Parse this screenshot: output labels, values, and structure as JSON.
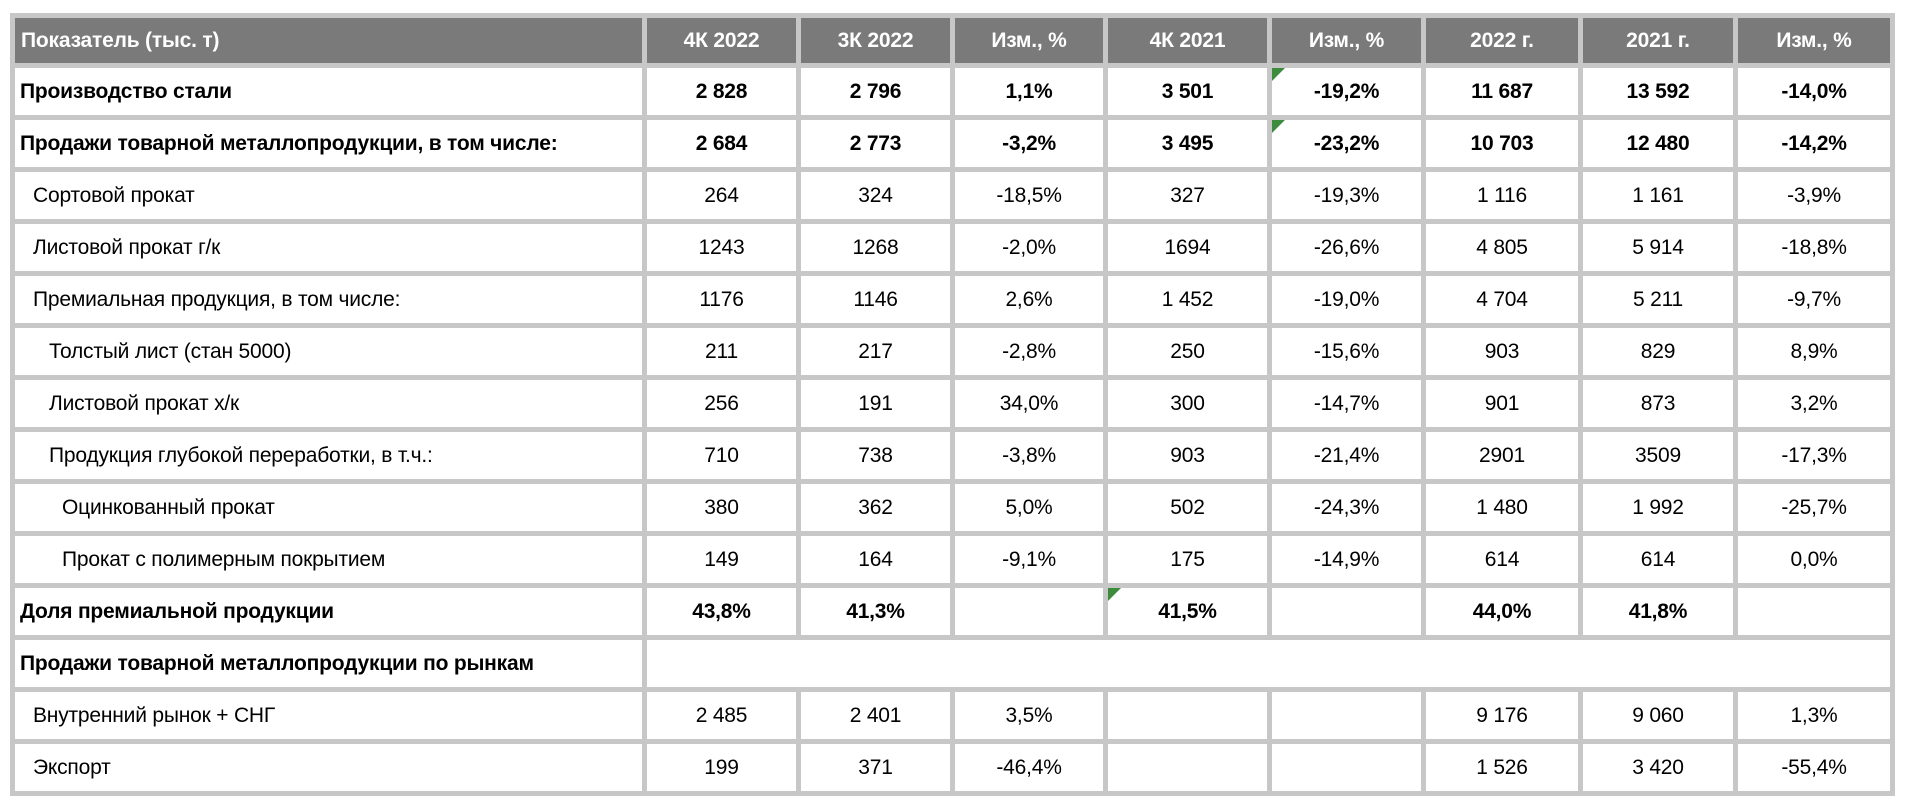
{
  "colors": {
    "header_background": "#7a7a7a",
    "header_text": "#ffffff",
    "grid_border": "#c7c7c7",
    "body_text": "#000000",
    "comment_flag_green": "#3d8b3d"
  },
  "chart_data": {
    "type": "table",
    "title": "Показатель (тыс. т)",
    "columns": [
      "Показатель (тыс. т)",
      "4К 2022",
      "3К 2022",
      "Изм., %",
      "4К 2021",
      "Изм., %",
      "2022 г.",
      "2021 г.",
      "Изм., %"
    ],
    "rows": [
      {
        "label": "Производство стали",
        "bold": true,
        "indent": 0,
        "merged": false,
        "flag_on": 4,
        "values": [
          "2 828",
          "2 796",
          "1,1%",
          "3 501",
          "-19,2%",
          "11 687",
          "13 592",
          "-14,0%"
        ]
      },
      {
        "label": "Продажи товарной металлопродукции, в том числе:",
        "bold": true,
        "indent": 0,
        "merged": false,
        "flag_on": 4,
        "values": [
          "2 684",
          "2 773",
          "-3,2%",
          "3 495",
          "-23,2%",
          "10 703",
          "12 480",
          "-14,2%"
        ]
      },
      {
        "label": "Сортовой прокат",
        "bold": false,
        "indent": 1,
        "merged": false,
        "flag_on": -1,
        "values": [
          "264",
          "324",
          "-18,5%",
          "327",
          "-19,3%",
          "1 116",
          "1 161",
          "-3,9%"
        ]
      },
      {
        "label": "Листовой прокат г/к",
        "bold": false,
        "indent": 1,
        "merged": false,
        "flag_on": -1,
        "values": [
          "1243",
          "1268",
          "-2,0%",
          "1694",
          "-26,6%",
          "4 805",
          "5 914",
          "-18,8%"
        ]
      },
      {
        "label": "Премиальная продукция, в том числе:",
        "bold": false,
        "indent": 1,
        "merged": false,
        "flag_on": -1,
        "values": [
          "1176",
          "1146",
          "2,6%",
          "1 452",
          "-19,0%",
          "4 704",
          "5 211",
          "-9,7%"
        ]
      },
      {
        "label": "Толстый лист (стан 5000)",
        "bold": false,
        "indent": 2,
        "merged": false,
        "flag_on": -1,
        "values": [
          "211",
          "217",
          "-2,8%",
          "250",
          "-15,6%",
          "903",
          "829",
          "8,9%"
        ]
      },
      {
        "label": "Листовой прокат х/к",
        "bold": false,
        "indent": 2,
        "merged": false,
        "flag_on": -1,
        "values": [
          "256",
          "191",
          "34,0%",
          "300",
          "-14,7%",
          "901",
          "873",
          "3,2%"
        ]
      },
      {
        "label": "Продукция глубокой переработки, в т.ч.:",
        "bold": false,
        "indent": 2,
        "merged": false,
        "flag_on": -1,
        "values": [
          "710",
          "738",
          "-3,8%",
          "903",
          "-21,4%",
          "2901",
          "3509",
          "-17,3%"
        ]
      },
      {
        "label": "Оцинкованный прокат",
        "bold": false,
        "indent": 3,
        "merged": false,
        "flag_on": -1,
        "values": [
          "380",
          "362",
          "5,0%",
          "502",
          "-24,3%",
          "1 480",
          "1 992",
          "-25,7%"
        ]
      },
      {
        "label": "Прокат с полимерным покрытием",
        "bold": false,
        "indent": 3,
        "merged": false,
        "flag_on": -1,
        "values": [
          "149",
          "164",
          "-9,1%",
          "175",
          "-14,9%",
          "614",
          "614",
          "0,0%"
        ]
      },
      {
        "label": "Доля премиальной продукции",
        "bold": true,
        "indent": 0,
        "merged": false,
        "flag_on": 3,
        "values": [
          "43,8%",
          "41,3%",
          "",
          "41,5%",
          "",
          "44,0%",
          "41,8%",
          ""
        ]
      },
      {
        "label": "Продажи товарной металлопродукции по рынкам",
        "bold": true,
        "indent": 0,
        "merged": true,
        "flag_on": -1,
        "values": [
          "",
          "",
          "",
          "",
          "",
          "",
          "",
          ""
        ]
      },
      {
        "label": "Внутренний рынок + СНГ",
        "bold": false,
        "indent": 1,
        "merged": false,
        "flag_on": -1,
        "values": [
          "2 485",
          "2 401",
          "3,5%",
          "",
          "",
          "9 176",
          "9 060",
          "1,3%"
        ]
      },
      {
        "label": "Экспорт",
        "bold": false,
        "indent": 1,
        "merged": false,
        "flag_on": -1,
        "values": [
          "199",
          "371",
          "-46,4%",
          "",
          "",
          "1 526",
          "3 420",
          "-55,4%"
        ]
      }
    ]
  }
}
